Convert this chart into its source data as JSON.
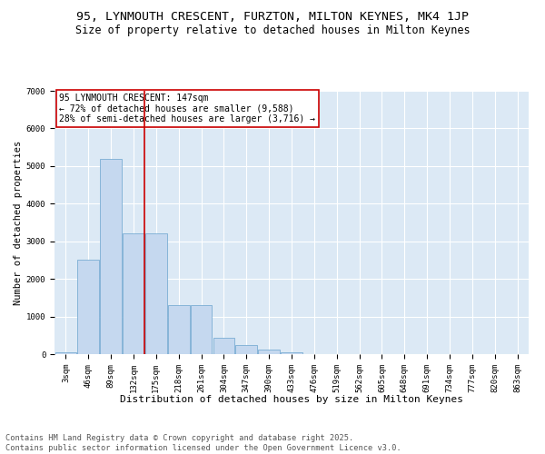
{
  "title": "95, LYNMOUTH CRESCENT, FURZTON, MILTON KEYNES, MK4 1JP",
  "subtitle": "Size of property relative to detached houses in Milton Keynes",
  "xlabel": "Distribution of detached houses by size in Milton Keynes",
  "ylabel": "Number of detached properties",
  "categories": [
    "3sqm",
    "46sqm",
    "89sqm",
    "132sqm",
    "175sqm",
    "218sqm",
    "261sqm",
    "304sqm",
    "347sqm",
    "390sqm",
    "433sqm",
    "476sqm",
    "519sqm",
    "562sqm",
    "605sqm",
    "648sqm",
    "691sqm",
    "734sqm",
    "777sqm",
    "820sqm",
    "863sqm"
  ],
  "values": [
    50,
    2500,
    5200,
    3200,
    3200,
    1300,
    1300,
    430,
    230,
    110,
    40,
    8,
    2,
    1,
    0,
    0,
    0,
    0,
    0,
    0,
    0
  ],
  "bar_color": "#c5d8ef",
  "bar_edge_color": "#7aadd4",
  "vline_index": 3.5,
  "vline_color": "#cc0000",
  "annotation_text": "95 LYNMOUTH CRESCENT: 147sqm\n← 72% of detached houses are smaller (9,588)\n28% of semi-detached houses are larger (3,716) →",
  "annotation_box_facecolor": "#ffffff",
  "annotation_box_edgecolor": "#cc0000",
  "ylim": [
    0,
    7000
  ],
  "yticks": [
    0,
    1000,
    2000,
    3000,
    4000,
    5000,
    6000,
    7000
  ],
  "bg_color": "#dce9f5",
  "grid_color": "#ffffff",
  "footer": "Contains HM Land Registry data © Crown copyright and database right 2025.\nContains public sector information licensed under the Open Government Licence v3.0.",
  "title_fontsize": 9.5,
  "subtitle_fontsize": 8.5,
  "xlabel_fontsize": 8,
  "ylabel_fontsize": 7.5,
  "tick_fontsize": 6.5,
  "annotation_fontsize": 7,
  "footer_fontsize": 6.2
}
